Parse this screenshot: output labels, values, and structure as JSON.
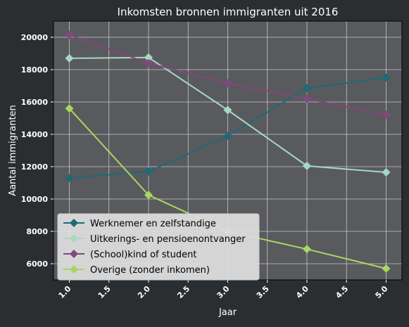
{
  "chart_data": {
    "type": "line",
    "title": "Inkomsten bronnen immigranten uit 2016",
    "xlabel": "Jaar",
    "ylabel": "Aantal immigranten",
    "x": [
      1.0,
      2.0,
      3.0,
      4.0,
      5.0
    ],
    "x_ticks": [
      "1.0",
      "1.5",
      "2.0",
      "2.5",
      "3.0",
      "3.5",
      "4.0",
      "4.5",
      "5.0"
    ],
    "y_ticks": [
      "6000",
      "8000",
      "10000",
      "12000",
      "14000",
      "16000",
      "18000",
      "20000"
    ],
    "xlim": [
      0.8,
      5.2
    ],
    "ylim": [
      5000,
      21000
    ],
    "grid": true,
    "legend_position": "lower-left",
    "series": [
      {
        "name": "Werknemer en zelfstandige",
        "color": "#1c6a7a",
        "values": [
          11300,
          11700,
          13900,
          16850,
          17500
        ]
      },
      {
        "name": "Uitkerings- en pensioenontvanger",
        "color": "#a6d9c0",
        "values": [
          18700,
          18750,
          15500,
          12050,
          11650
        ]
      },
      {
        "name": "(School)kind of student",
        "color": "#80487c",
        "values": [
          20150,
          18400,
          17150,
          16200,
          15200
        ]
      },
      {
        "name": "Overige (zonder inkomen)",
        "color": "#a8d662",
        "values": [
          15600,
          10250,
          8000,
          6900,
          5700
        ]
      }
    ]
  },
  "colors": {
    "page_background": "#2b2e31",
    "plot_background": "#595a5e",
    "grid": "#c5c6c8",
    "legend_background": "#dcdcdc"
  }
}
